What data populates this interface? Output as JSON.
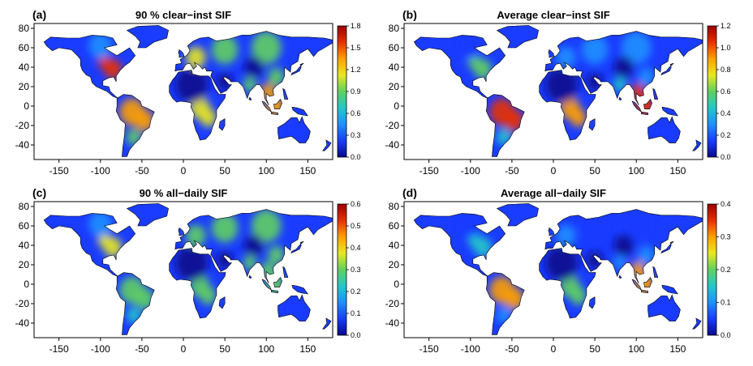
{
  "figure": {
    "panels": [
      {
        "letter": "(a)",
        "title": "90 % clear−inst SIF",
        "colorbar": {
          "min": 0.0,
          "max": 1.8,
          "ticks": [
            "0.0",
            "0.3",
            "0.6",
            "0.9",
            "1.2",
            "1.5",
            "1.8"
          ]
        },
        "regional_level": {
          "amazon": 0.72,
          "africa_c": 0.65,
          "se_asia": 0.7,
          "us_east": 0.85,
          "europe": 0.6,
          "russia": 0.45,
          "china": 0.55,
          "india": 0.55,
          "desert": 0.02,
          "australia": 0.18,
          "canada_n": 0.25,
          "argentina": 0.5
        }
      },
      {
        "letter": "(b)",
        "title": "Average clear−inst SIF",
        "colorbar": {
          "min": 0.0,
          "max": 1.2,
          "ticks": [
            "0.0",
            "0.2",
            "0.4",
            "0.6",
            "0.8",
            "1.0",
            "1.2"
          ]
        },
        "regional_level": {
          "amazon": 0.9,
          "africa_c": 0.7,
          "se_asia": 0.85,
          "us_east": 0.45,
          "europe": 0.3,
          "russia": 0.25,
          "china": 0.3,
          "india": 0.4,
          "desert": 0.02,
          "australia": 0.1,
          "canada_n": 0.1,
          "argentina": 0.35
        }
      },
      {
        "letter": "(c)",
        "title": "90 % all−daily SIF",
        "colorbar": {
          "min": 0.0,
          "max": 0.6,
          "ticks": [
            "0.0",
            "0.1",
            "0.2",
            "0.3",
            "0.4",
            "0.5",
            "0.6"
          ]
        },
        "regional_level": {
          "amazon": 0.55,
          "africa_c": 0.45,
          "se_asia": 0.55,
          "us_east": 0.65,
          "europe": 0.55,
          "russia": 0.45,
          "china": 0.45,
          "india": 0.45,
          "desert": 0.02,
          "australia": 0.12,
          "canada_n": 0.3,
          "argentina": 0.4
        }
      },
      {
        "letter": "(d)",
        "title": "Average all−daily SIF",
        "colorbar": {
          "min": 0.0,
          "max": 0.4,
          "ticks": [
            "0.0",
            "0.1",
            "0.2",
            "0.3",
            "0.4"
          ]
        },
        "regional_level": {
          "amazon": 0.8,
          "africa_c": 0.55,
          "se_asia": 0.7,
          "us_east": 0.35,
          "europe": 0.22,
          "russia": 0.18,
          "china": 0.2,
          "india": 0.3,
          "desert": 0.02,
          "australia": 0.08,
          "canada_n": 0.08,
          "argentina": 0.25
        }
      }
    ],
    "x_axis": {
      "min": -180,
      "max": 180,
      "ticks": [
        "-150",
        "-100",
        "-50",
        "0",
        "50",
        "100",
        "150"
      ]
    },
    "y_axis": {
      "min": -55,
      "max": 85,
      "ticks": [
        "80",
        "60",
        "40",
        "20",
        "0",
        "-20",
        "-40"
      ]
    },
    "colormap": [
      "#08088c",
      "#1a3cff",
      "#1e90ff",
      "#22c8c8",
      "#60d060",
      "#e8e820",
      "#ffa000",
      "#e83000",
      "#9c0000"
    ]
  }
}
